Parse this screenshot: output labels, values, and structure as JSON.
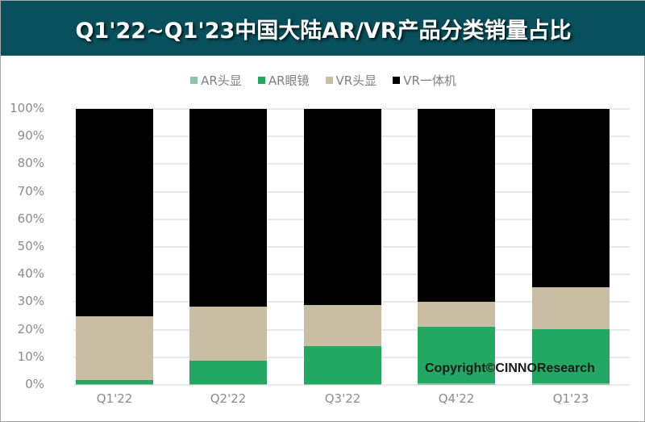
{
  "title": "Q1'22~Q1'23中国大陆AR/VR产品分类销量占比",
  "legend": [
    {
      "label": "AR头显",
      "color": "#8fc3a8"
    },
    {
      "label": "AR眼镜",
      "color": "#22a863"
    },
    {
      "label": "VR头显",
      "color": "#c9bea3"
    },
    {
      "label": "VR一体机",
      "color": "#000000"
    }
  ],
  "y_ticks": [
    "100%",
    "90%",
    "80%",
    "70%",
    "60%",
    "50%",
    "40%",
    "30%",
    "20%",
    "10%",
    "0%"
  ],
  "x_labels": [
    "Q1'22",
    "Q2'22",
    "Q3'22",
    "Q4'22",
    "Q1'23"
  ],
  "copyright": "Copyright©CINNOResearch",
  "chart_data": {
    "type": "bar",
    "stacked": true,
    "normalized": true,
    "title": "Q1'22~Q1'23中国大陆AR/VR产品分类销量占比",
    "xlabel": "",
    "ylabel": "",
    "ylim": [
      0,
      100
    ],
    "y_tick_format": "percent",
    "legend_position": "top",
    "grid": true,
    "categories": [
      "Q1'22",
      "Q2'22",
      "Q3'22",
      "Q4'22",
      "Q1'23"
    ],
    "series": [
      {
        "name": "AR头显",
        "color": "#8fc3a8",
        "values": [
          0.2,
          0.2,
          0.2,
          0.5,
          0.5
        ]
      },
      {
        "name": "AR眼镜",
        "color": "#22a863",
        "values": [
          1.6,
          8.6,
          13.8,
          20.5,
          19.7
        ]
      },
      {
        "name": "VR头显",
        "color": "#c9bea3",
        "values": [
          23.2,
          19.6,
          15.0,
          9.0,
          15.2
        ]
      },
      {
        "name": "VR一体机",
        "color": "#000000",
        "values": [
          75.0,
          71.6,
          71.0,
          70.0,
          64.6
        ]
      }
    ],
    "annotations": [
      "Copyright©CINNOResearch"
    ]
  }
}
